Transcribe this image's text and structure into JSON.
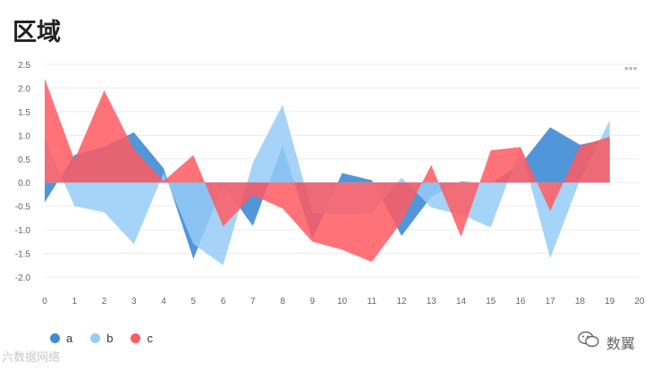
{
  "title": "区域",
  "menu_icon": "more-horizontal-icon",
  "chart_data": {
    "type": "area",
    "x": [
      0,
      1,
      2,
      3,
      4,
      5,
      6,
      7,
      8,
      9,
      10,
      11,
      12,
      13,
      14,
      15,
      16,
      17,
      18,
      19
    ],
    "xlim": [
      0,
      20
    ],
    "x_ticks": [
      0,
      1,
      2,
      3,
      4,
      5,
      6,
      7,
      8,
      9,
      10,
      11,
      12,
      13,
      14,
      15,
      16,
      17,
      18,
      19,
      20
    ],
    "ylim": [
      -2.0,
      2.5
    ],
    "y_ticks": [
      2.5,
      2.0,
      1.5,
      1.0,
      0.5,
      0.0,
      -0.5,
      -1.0,
      -1.5,
      -2.0
    ],
    "grid": true,
    "legend_position": "bottom-left",
    "series": [
      {
        "name": "a",
        "color": "#3f8bd6",
        "values": [
          -0.42,
          0.58,
          0.76,
          1.06,
          0.3,
          -1.62,
          -0.05,
          -0.92,
          0.78,
          -1.2,
          0.2,
          0.05,
          -1.13,
          -0.3,
          0.02,
          -0.02,
          0.38,
          1.17,
          0.8,
          0.93
        ]
      },
      {
        "name": "b",
        "color": "#95cdf7",
        "values": [
          0.93,
          -0.5,
          -0.63,
          -1.3,
          0.2,
          -1.3,
          -1.75,
          0.42,
          1.65,
          -0.65,
          -0.67,
          -0.65,
          0.1,
          -0.53,
          -0.68,
          -0.95,
          0.75,
          -1.6,
          0.05,
          1.32
        ]
      },
      {
        "name": "c",
        "color": "#ff5a60",
        "values": [
          2.2,
          0.48,
          1.95,
          0.7,
          0.03,
          0.58,
          -0.93,
          -0.27,
          -0.55,
          -1.25,
          -1.42,
          -1.68,
          -0.83,
          0.37,
          -1.15,
          0.68,
          0.75,
          -0.6,
          0.77,
          0.97
        ]
      }
    ]
  },
  "watermark_left": "六数据网络",
  "watermark_right": "数翼"
}
